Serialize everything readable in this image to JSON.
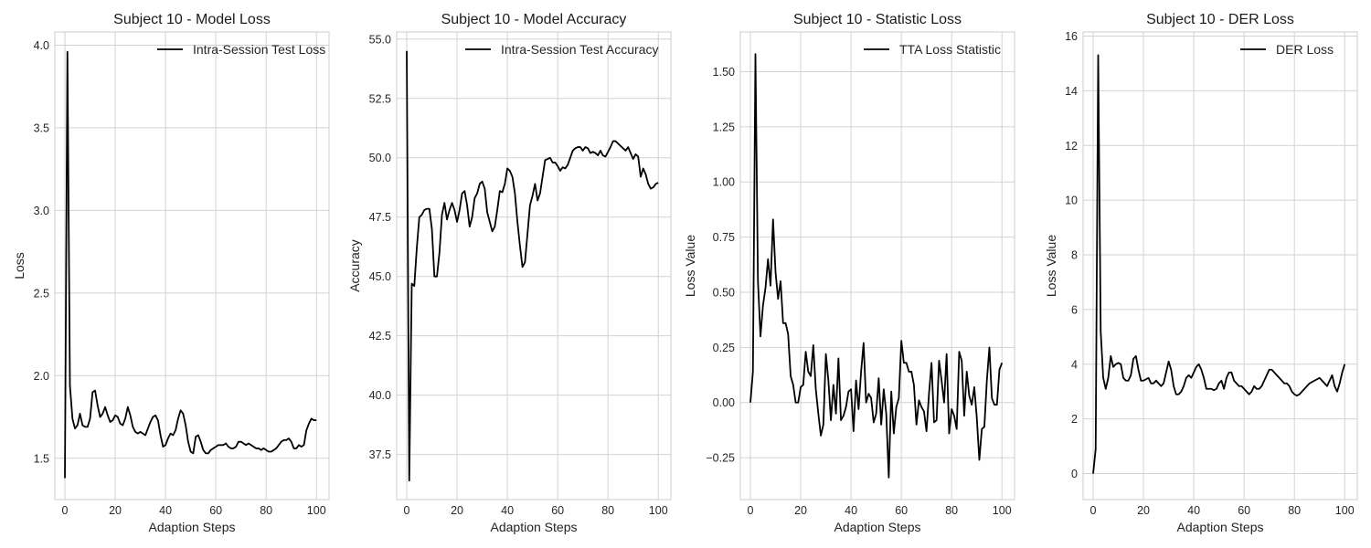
{
  "chart_data": [
    {
      "type": "line",
      "title": "Subject 10 - Model Loss",
      "xlabel": "Adaption Steps",
      "ylabel": "Loss",
      "xlim": [
        -4,
        105
      ],
      "ylim": [
        1.25,
        4.08
      ],
      "xticks": [
        0,
        20,
        40,
        60,
        80,
        100
      ],
      "yticks": [
        1.5,
        2.0,
        2.5,
        3.0,
        3.5,
        4.0
      ],
      "ytick_labels": [
        "1.5",
        "2.0",
        "2.5",
        "3.0",
        "3.5",
        "4.0"
      ],
      "grid": true,
      "legend_position": "top-right",
      "series": [
        {
          "name": "Intra-Session Test Loss",
          "color": "#000000",
          "x": [
            0,
            1,
            2,
            3,
            4,
            5,
            6,
            7,
            8,
            9,
            10,
            11,
            12,
            13,
            14,
            15,
            16,
            17,
            18,
            19,
            20,
            21,
            22,
            23,
            24,
            25,
            26,
            27,
            28,
            29,
            30,
            31,
            32,
            33,
            34,
            35,
            36,
            37,
            38,
            39,
            40,
            41,
            42,
            43,
            44,
            45,
            46,
            47,
            48,
            49,
            50,
            51,
            52,
            53,
            54,
            55,
            56,
            57,
            58,
            59,
            60,
            61,
            62,
            63,
            64,
            65,
            66,
            67,
            68,
            69,
            70,
            71,
            72,
            73,
            74,
            75,
            76,
            77,
            78,
            79,
            80,
            81,
            82,
            83,
            84,
            85,
            86,
            87,
            88,
            89,
            90,
            91,
            92,
            93,
            94,
            95,
            96,
            97,
            98,
            99,
            100
          ],
          "y": [
            1.38,
            3.96,
            1.94,
            1.74,
            1.68,
            1.7,
            1.77,
            1.7,
            1.69,
            1.69,
            1.74,
            1.9,
            1.91,
            1.82,
            1.75,
            1.77,
            1.81,
            1.76,
            1.72,
            1.73,
            1.76,
            1.75,
            1.71,
            1.7,
            1.74,
            1.81,
            1.76,
            1.69,
            1.66,
            1.65,
            1.66,
            1.65,
            1.64,
            1.68,
            1.72,
            1.75,
            1.76,
            1.73,
            1.64,
            1.57,
            1.58,
            1.62,
            1.65,
            1.64,
            1.67,
            1.74,
            1.79,
            1.77,
            1.7,
            1.6,
            1.54,
            1.53,
            1.63,
            1.64,
            1.6,
            1.55,
            1.53,
            1.53,
            1.55,
            1.56,
            1.57,
            1.58,
            1.58,
            1.58,
            1.59,
            1.57,
            1.56,
            1.56,
            1.57,
            1.6,
            1.6,
            1.59,
            1.58,
            1.59,
            1.58,
            1.57,
            1.56,
            1.56,
            1.55,
            1.56,
            1.55,
            1.54,
            1.54,
            1.55,
            1.56,
            1.58,
            1.6,
            1.61,
            1.61,
            1.62,
            1.6,
            1.56,
            1.56,
            1.58,
            1.57,
            1.58,
            1.67,
            1.71,
            1.74,
            1.73,
            1.73
          ]
        }
      ]
    },
    {
      "type": "line",
      "title": "Subject 10 - Model Accuracy",
      "xlabel": "Adaption Steps",
      "ylabel": "Accuracy",
      "xlim": [
        -4,
        105
      ],
      "ylim": [
        35.6,
        55.3
      ],
      "xticks": [
        0,
        20,
        40,
        60,
        80,
        100
      ],
      "yticks": [
        37.5,
        40.0,
        42.5,
        45.0,
        47.5,
        50.0,
        52.5,
        55.0
      ],
      "ytick_labels": [
        "37.5",
        "40.0",
        "42.5",
        "45.0",
        "47.5",
        "50.0",
        "52.5",
        "55.0"
      ],
      "grid": true,
      "legend_position": "top-right",
      "series": [
        {
          "name": "Intra-Session Test Accuracy",
          "color": "#000000",
          "x": [
            0,
            1,
            2,
            3,
            4,
            5,
            6,
            7,
            8,
            9,
            10,
            11,
            12,
            13,
            14,
            15,
            16,
            17,
            18,
            19,
            20,
            21,
            22,
            23,
            24,
            25,
            26,
            27,
            28,
            29,
            30,
            31,
            32,
            33,
            34,
            35,
            36,
            37,
            38,
            39,
            40,
            41,
            42,
            43,
            44,
            45,
            46,
            47,
            48,
            49,
            50,
            51,
            52,
            53,
            54,
            55,
            56,
            57,
            58,
            59,
            60,
            61,
            62,
            63,
            64,
            65,
            66,
            67,
            68,
            69,
            70,
            71,
            72,
            73,
            74,
            75,
            76,
            77,
            78,
            79,
            80,
            81,
            82,
            83,
            84,
            85,
            86,
            87,
            88,
            89,
            90,
            91,
            92,
            93,
            94,
            95,
            96,
            97,
            98,
            99,
            100
          ],
          "y": [
            54.5,
            36.4,
            44.7,
            44.6,
            46.2,
            47.5,
            47.6,
            47.8,
            47.85,
            47.85,
            47.0,
            45.0,
            45.0,
            46.0,
            47.6,
            48.1,
            47.4,
            47.8,
            48.1,
            47.8,
            47.3,
            47.8,
            48.5,
            48.6,
            48.0,
            47.1,
            47.5,
            48.3,
            48.5,
            48.9,
            49.0,
            48.7,
            47.7,
            47.3,
            46.9,
            47.1,
            47.8,
            48.6,
            48.55,
            48.9,
            49.55,
            49.45,
            49.2,
            48.5,
            47.3,
            46.3,
            45.4,
            45.6,
            46.8,
            48.0,
            48.4,
            48.9,
            48.2,
            48.5,
            49.2,
            49.9,
            49.95,
            50.0,
            49.8,
            49.8,
            49.65,
            49.45,
            49.6,
            49.55,
            49.7,
            50.0,
            50.3,
            50.4,
            50.45,
            50.45,
            50.3,
            50.45,
            50.4,
            50.2,
            50.25,
            50.2,
            50.1,
            50.3,
            50.1,
            50.05,
            50.25,
            50.45,
            50.7,
            50.7,
            50.6,
            50.5,
            50.4,
            50.3,
            50.45,
            50.2,
            49.95,
            50.15,
            50.05,
            49.2,
            49.55,
            49.3,
            48.9,
            48.7,
            48.75,
            48.9,
            48.95
          ]
        }
      ]
    },
    {
      "type": "line",
      "title": "Subject 10 - Statistic Loss",
      "xlabel": "Adaption Steps",
      "ylabel": "Loss Value",
      "xlim": [
        -4,
        105
      ],
      "ylim": [
        -0.44,
        1.68
      ],
      "xticks": [
        0,
        20,
        40,
        60,
        80,
        100
      ],
      "yticks": [
        -0.25,
        0.0,
        0.25,
        0.5,
        0.75,
        1.0,
        1.25,
        1.5
      ],
      "ytick_labels": [
        "−0.25",
        "0.00",
        "0.25",
        "0.50",
        "0.75",
        "1.00",
        "1.25",
        "1.50"
      ],
      "grid": true,
      "legend_position": "top-right",
      "series": [
        {
          "name": "TTA Loss Statistic",
          "color": "#000000",
          "x": [
            0,
            1,
            2,
            3,
            4,
            5,
            6,
            7,
            8,
            9,
            10,
            11,
            12,
            13,
            14,
            15,
            16,
            17,
            18,
            19,
            20,
            21,
            22,
            23,
            24,
            25,
            26,
            27,
            28,
            29,
            30,
            31,
            32,
            33,
            34,
            35,
            36,
            37,
            38,
            39,
            40,
            41,
            42,
            43,
            44,
            45,
            46,
            47,
            48,
            49,
            50,
            51,
            52,
            53,
            54,
            55,
            56,
            57,
            58,
            59,
            60,
            61,
            62,
            63,
            64,
            65,
            66,
            67,
            68,
            69,
            70,
            71,
            72,
            73,
            74,
            75,
            76,
            77,
            78,
            79,
            80,
            81,
            82,
            83,
            84,
            85,
            86,
            87,
            88,
            89,
            90,
            91,
            92,
            93,
            94,
            95,
            96,
            97,
            98,
            99,
            100
          ],
          "y": [
            0.0,
            0.14,
            1.58,
            0.55,
            0.3,
            0.44,
            0.52,
            0.65,
            0.53,
            0.83,
            0.59,
            0.47,
            0.55,
            0.36,
            0.36,
            0.31,
            0.12,
            0.08,
            0.0,
            0.0,
            0.07,
            0.08,
            0.23,
            0.14,
            0.12,
            0.26,
            0.06,
            -0.05,
            -0.15,
            -0.1,
            0.22,
            0.1,
            -0.08,
            0.08,
            -0.05,
            0.2,
            -0.08,
            -0.06,
            -0.02,
            0.05,
            0.06,
            -0.13,
            0.1,
            -0.03,
            0.14,
            0.27,
            0.0,
            0.04,
            0.02,
            -0.09,
            -0.05,
            0.11,
            -0.1,
            0.06,
            -0.05,
            -0.34,
            0.05,
            -0.14,
            -0.02,
            0.02,
            0.28,
            0.18,
            0.18,
            0.14,
            0.14,
            0.08,
            -0.1,
            0.01,
            -0.02,
            -0.04,
            -0.13,
            0.04,
            0.18,
            -0.09,
            -0.08,
            0.19,
            0.1,
            0.0,
            0.22,
            -0.14,
            -0.03,
            -0.06,
            -0.12,
            0.23,
            0.19,
            -0.06,
            0.14,
            0.03,
            -0.01,
            0.07,
            -0.07,
            -0.26,
            -0.12,
            -0.11,
            0.1,
            0.25,
            0.02,
            -0.01,
            -0.01,
            0.15,
            0.18
          ]
        }
      ]
    },
    {
      "type": "line",
      "title": "Subject 10 - DER Loss",
      "xlabel": "Adaption Steps",
      "ylabel": "Loss Value",
      "xlim": [
        -4,
        105
      ],
      "ylim": [
        -0.95,
        16.15
      ],
      "xticks": [
        0,
        20,
        40,
        60,
        80,
        100
      ],
      "yticks": [
        0,
        2,
        4,
        6,
        8,
        10,
        12,
        14,
        16
      ],
      "ytick_labels": [
        "0",
        "2",
        "4",
        "6",
        "8",
        "10",
        "12",
        "14",
        "16"
      ],
      "grid": true,
      "legend_position": "top-right",
      "series": [
        {
          "name": "DER Loss",
          "color": "#000000",
          "x": [
            0,
            1,
            2,
            3,
            4,
            5,
            6,
            7,
            8,
            9,
            10,
            11,
            12,
            13,
            14,
            15,
            16,
            17,
            18,
            19,
            20,
            21,
            22,
            23,
            24,
            25,
            26,
            27,
            28,
            29,
            30,
            31,
            32,
            33,
            34,
            35,
            36,
            37,
            38,
            39,
            40,
            41,
            42,
            43,
            44,
            45,
            46,
            47,
            48,
            49,
            50,
            51,
            52,
            53,
            54,
            55,
            56,
            57,
            58,
            59,
            60,
            61,
            62,
            63,
            64,
            65,
            66,
            67,
            68,
            69,
            70,
            71,
            72,
            73,
            74,
            75,
            76,
            77,
            78,
            79,
            80,
            81,
            82,
            83,
            84,
            85,
            86,
            87,
            88,
            89,
            90,
            91,
            92,
            93,
            94,
            95,
            96,
            97,
            98,
            99,
            100
          ],
          "y": [
            0.0,
            0.9,
            15.3,
            5.2,
            3.5,
            3.1,
            3.5,
            4.3,
            3.9,
            4.0,
            4.05,
            4.0,
            3.5,
            3.4,
            3.4,
            3.6,
            4.2,
            4.3,
            3.8,
            3.4,
            3.4,
            3.45,
            3.5,
            3.3,
            3.3,
            3.4,
            3.3,
            3.2,
            3.3,
            3.7,
            4.1,
            3.8,
            3.2,
            2.9,
            2.9,
            3.0,
            3.2,
            3.5,
            3.6,
            3.5,
            3.7,
            3.9,
            4.0,
            3.8,
            3.5,
            3.1,
            3.1,
            3.1,
            3.05,
            3.1,
            3.3,
            3.4,
            3.1,
            3.5,
            3.7,
            3.7,
            3.4,
            3.3,
            3.2,
            3.2,
            3.1,
            3.0,
            2.9,
            3.0,
            3.2,
            3.1,
            3.1,
            3.2,
            3.4,
            3.6,
            3.8,
            3.8,
            3.7,
            3.6,
            3.5,
            3.4,
            3.3,
            3.3,
            3.2,
            3.0,
            2.9,
            2.85,
            2.9,
            3.0,
            3.1,
            3.2,
            3.3,
            3.35,
            3.4,
            3.45,
            3.5,
            3.4,
            3.3,
            3.2,
            3.4,
            3.6,
            3.2,
            3.0,
            3.3,
            3.7,
            4.0
          ]
        }
      ]
    }
  ]
}
